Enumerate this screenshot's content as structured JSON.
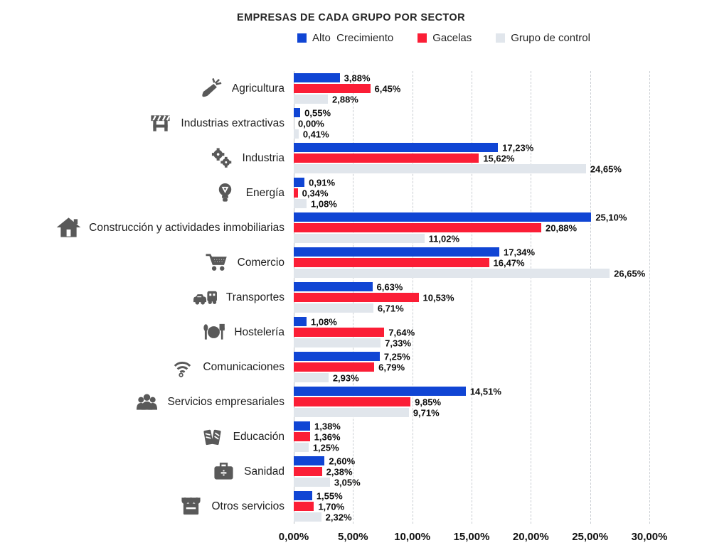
{
  "chart_data": {
    "type": "bar",
    "orientation": "horizontal-grouped",
    "title": "EMPRESAS DE CADA GRUPO POR SECTOR",
    "legend_position": "top",
    "grid": "vertical-dashed",
    "x_axis": {
      "min": 0,
      "max": 30,
      "unit": "%",
      "ticks": [
        0,
        5,
        10,
        15,
        20,
        25,
        30
      ],
      "tick_labels": [
        "0,00%",
        "5,00%",
        "10,00%",
        "15,00%",
        "20,00%",
        "25,00%",
        "30,00%"
      ]
    },
    "categories": [
      {
        "label": "Agricultura",
        "icon": "carrot"
      },
      {
        "label": "Industrias extractivas",
        "icon": "barrier"
      },
      {
        "label": "Industria",
        "icon": "gears"
      },
      {
        "label": "Energía",
        "icon": "bulb"
      },
      {
        "label": "Construcción y actividades inmobiliarias",
        "icon": "house"
      },
      {
        "label": "Comercio",
        "icon": "cart"
      },
      {
        "label": "Transportes",
        "icon": "vehicles"
      },
      {
        "label": "Hostelería",
        "icon": "restaurant"
      },
      {
        "label": "Comunicaciones",
        "icon": "wifi"
      },
      {
        "label": "Servicios empresariales",
        "icon": "people"
      },
      {
        "label": "Educación",
        "icon": "books"
      },
      {
        "label": "Sanidad",
        "icon": "medkit"
      },
      {
        "label": "Otros servicios",
        "icon": "store"
      }
    ],
    "series": [
      {
        "name": "Alto  Crecimiento",
        "color": "#1045D4",
        "values": [
          3.88,
          0.55,
          17.23,
          0.91,
          25.1,
          17.34,
          6.63,
          1.08,
          7.25,
          14.51,
          1.38,
          2.6,
          1.55
        ],
        "labels": [
          "3,88%",
          "0,55%",
          "17,23%",
          "0,91%",
          "25,10%",
          "17,34%",
          "6,63%",
          "1,08%",
          "7,25%",
          "14,51%",
          "1,38%",
          "2,60%",
          "1,55%"
        ]
      },
      {
        "name": "Gacelas",
        "color": "#FB1E36",
        "values": [
          6.45,
          0.0,
          15.62,
          0.34,
          20.88,
          16.47,
          10.53,
          7.64,
          6.79,
          9.85,
          1.36,
          2.38,
          1.7
        ],
        "labels": [
          "6,45%",
          "0,00%",
          "15,62%",
          "0,34%",
          "20,88%",
          "16,47%",
          "10,53%",
          "7,64%",
          "6,79%",
          "9,85%",
          "1,36%",
          "2,38%",
          "1,70%"
        ]
      },
      {
        "name": "Grupo de control",
        "color": "#E1E6EC",
        "values": [
          2.88,
          0.41,
          24.65,
          1.08,
          11.02,
          26.65,
          6.71,
          7.33,
          2.93,
          9.71,
          1.25,
          3.05,
          2.32
        ],
        "labels": [
          "2,88%",
          "0,41%",
          "24,65%",
          "1,08%",
          "11,02%",
          "26,65%",
          "6,71%",
          "7,33%",
          "2,93%",
          "9,71%",
          "1,25%",
          "3,05%",
          "2,32%"
        ]
      }
    ],
    "icon_color": "#595959"
  }
}
